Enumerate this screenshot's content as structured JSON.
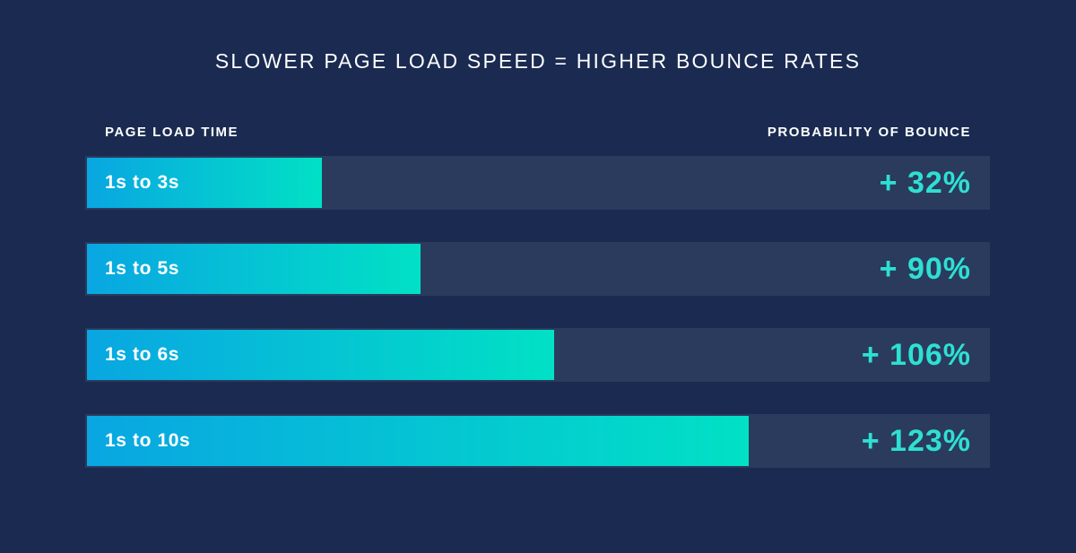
{
  "title": "SLOWER PAGE LOAD SPEED = HIGHER BOUNCE RATES",
  "columns": {
    "left": "PAGE LOAD TIME",
    "right": "PROBABILITY OF BOUNCE"
  },
  "colors": {
    "background": "#1a2a51",
    "track": "#2a3b5e",
    "bar_gradient_start": "#09a6e2",
    "bar_gradient_end": "#01e1c5",
    "value_text": "#2ee0d2",
    "label_text": "#ffffff"
  },
  "chart_data": {
    "type": "bar",
    "orientation": "horizontal",
    "title": "SLOWER PAGE LOAD SPEED = HIGHER BOUNCE RATES",
    "xlabel": "PROBABILITY OF BOUNCE",
    "ylabel": "PAGE LOAD TIME",
    "categories": [
      "1s to 3s",
      "1s to 5s",
      "1s to 6s",
      "1s to 10s"
    ],
    "values": [
      32,
      90,
      106,
      123
    ],
    "value_labels": [
      "+ 32%",
      "+ 90%",
      "+ 106%",
      "+ 123%"
    ],
    "bar_length_pct": [
      26.0,
      36.9,
      51.6,
      73.1
    ],
    "legend": false,
    "grid": false
  }
}
